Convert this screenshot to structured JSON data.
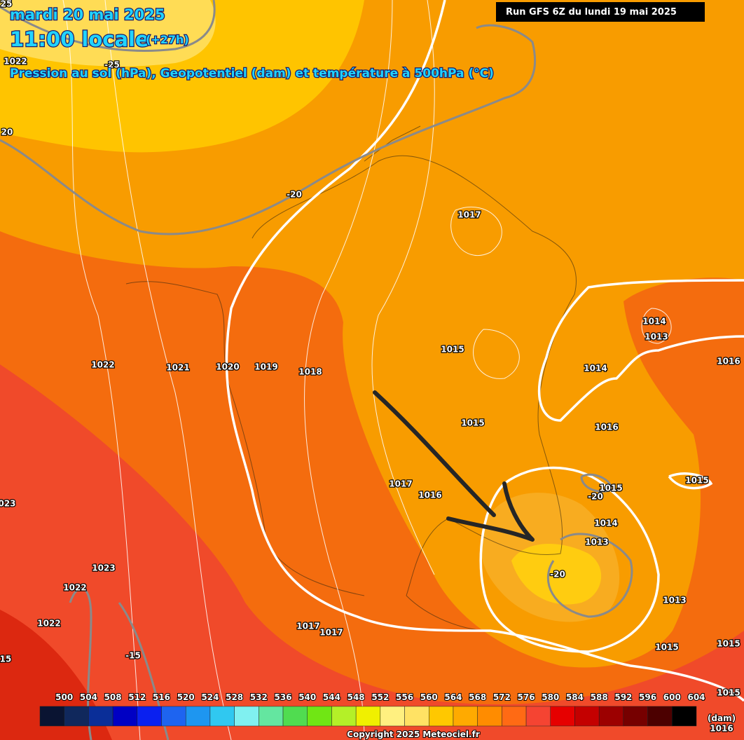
{
  "header": {
    "date": "mardi 20 mai 2025",
    "time": "11:00 locale",
    "lead": "(+27h)",
    "subtitle": "Pression au sol (hPa), Geopotentiel (dam) et température à 500hPa (°C)",
    "run": "Run GFS 6Z du lundi 19 mai 2025"
  },
  "map": {
    "labels": [
      "25",
      "1022",
      "-25",
      "20",
      "-20",
      "1017",
      "1014",
      "1013",
      "1015",
      "1022",
      "1021",
      "1020",
      "1019",
      "1018",
      "1014",
      "1016",
      "1015",
      "1016",
      "1017",
      "1016",
      "1015",
      "-20",
      "1015",
      "023",
      "1014",
      "1013",
      "1023",
      "-20",
      "1022",
      "1013",
      "1022",
      "1017",
      "1017",
      "-15",
      "1015",
      "1015",
      "15",
      "1015",
      "1016"
    ]
  },
  "legend": {
    "values": [
      500,
      504,
      508,
      512,
      516,
      520,
      524,
      528,
      532,
      536,
      540,
      544,
      548,
      552,
      556,
      560,
      564,
      568,
      572,
      576,
      580,
      584,
      588,
      592,
      596,
      600,
      604
    ],
    "unit": "(dam)"
  },
  "footer": {
    "copyright": "Copyright 2025 Meteociel.fr"
  }
}
